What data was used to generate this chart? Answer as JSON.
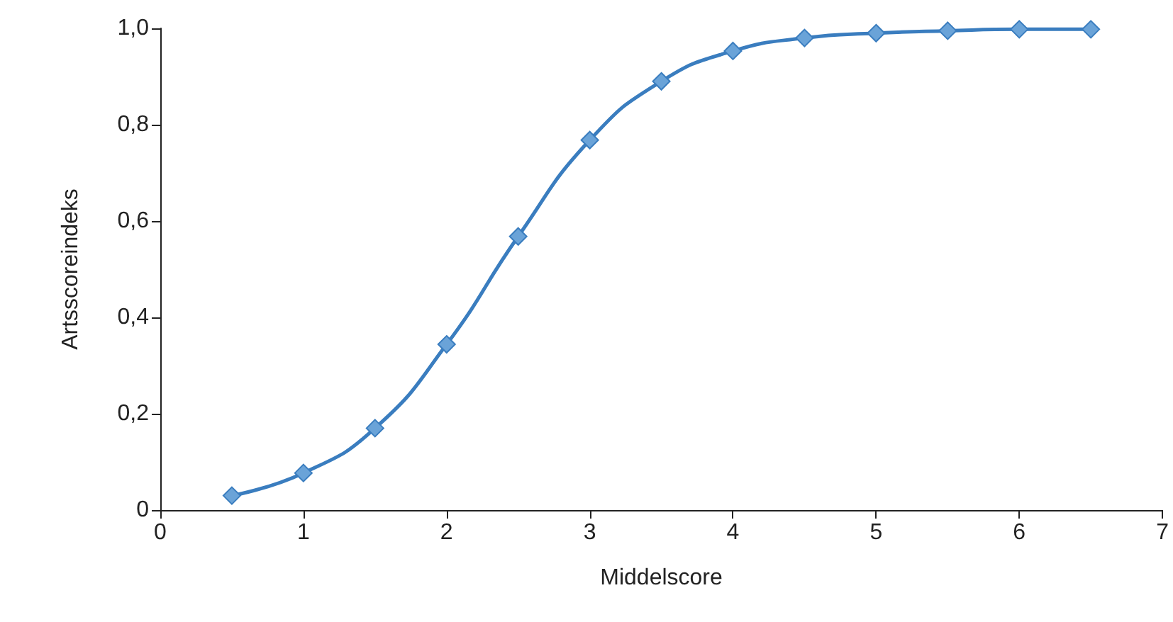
{
  "chart_data": {
    "type": "line",
    "xlabel": "Middelscore",
    "ylabel": "Artsscoreindeks",
    "x": [
      0.5,
      1,
      1.5,
      2,
      2.5,
      3,
      3.5,
      4,
      4.5,
      5,
      5.5,
      6,
      6.5
    ],
    "series": [
      {
        "color": "#3a7dbf",
        "values": [
          0.03,
          0.077,
          0.17,
          0.344,
          0.568,
          0.768,
          0.89,
          0.953,
          0.98,
          0.99,
          0.995,
          0.998,
          0.998
        ]
      }
    ],
    "xlim": [
      0,
      7
    ],
    "xticks": [
      0,
      1,
      2,
      3,
      4,
      5,
      6,
      7
    ],
    "ylim": [
      0,
      1
    ],
    "yticks": [
      0,
      {
        "value": 0.2,
        "label": "0,2"
      },
      {
        "value": 0.4,
        "label": "0,4"
      },
      {
        "value": 0.6,
        "label": "0,6"
      },
      {
        "value": 0.8,
        "label": "0,8"
      },
      {
        "value": 1,
        "label": "1,0"
      }
    ],
    "grid": false,
    "marker": "diamond",
    "line_style": "solid"
  }
}
